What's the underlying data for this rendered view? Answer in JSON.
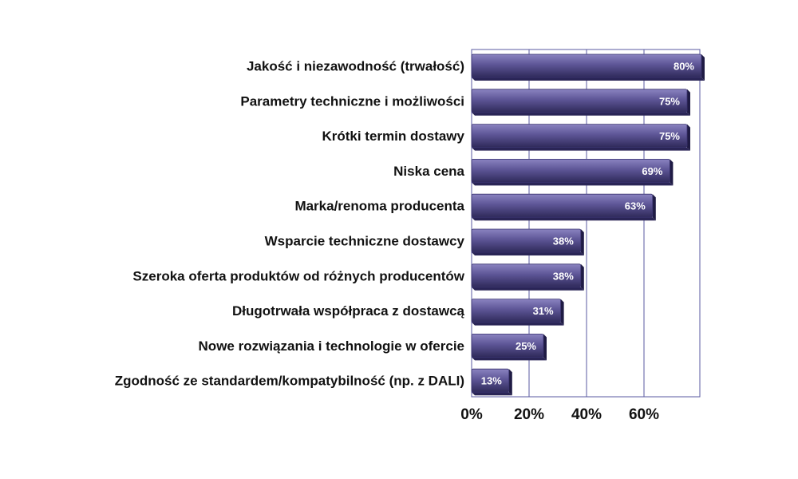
{
  "chart_data": {
    "type": "bar",
    "orientation": "horizontal",
    "categories": [
      "Jakość i niezawodność (trwałość)",
      "Parametry techniczne i możliwości",
      "Krótki termin dostawy",
      "Niska cena",
      "Marka/renoma producenta",
      "Wsparcie techniczne dostawcy",
      "Szeroka oferta produktów od różnych producentów",
      "Długotrwała współpraca z dostawcą",
      "Nowe rozwiązania i technologie w ofercie",
      "Zgodność ze standardem/kompatybilność (np. z DALI)"
    ],
    "values": [
      80,
      75,
      75,
      69,
      63,
      38,
      38,
      31,
      25,
      13
    ],
    "value_labels": [
      "80%",
      "75%",
      "75%",
      "69%",
      "63%",
      "38%",
      "38%",
      "31%",
      "25%",
      "13%"
    ],
    "x_ticks": [
      0,
      20,
      40,
      60
    ],
    "x_tick_labels": [
      "0%",
      "20%",
      "40%",
      "60%"
    ],
    "xlim": [
      0,
      80
    ],
    "grid": "vertical",
    "legend": "none",
    "colors": {
      "bar_fill": "#5d5596",
      "bar_highlight": "#8a83c0",
      "bar_shadow": "#2f2a5a",
      "grid": "#5a5aa0",
      "text": "#111111",
      "value_text": "#ffffff"
    }
  }
}
